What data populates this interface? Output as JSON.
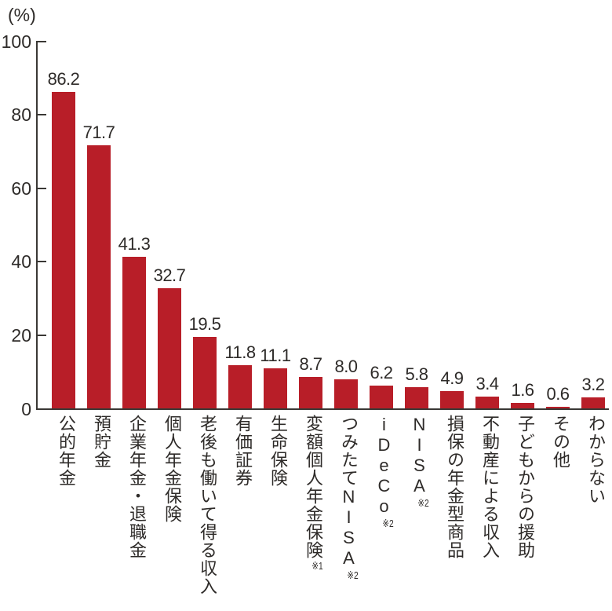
{
  "chart_data": {
    "type": "bar",
    "title": "",
    "xlabel": "",
    "ylabel": "",
    "y_unit_label": "(%)",
    "ylim": [
      0,
      100
    ],
    "yticks": [
      0,
      20,
      40,
      60,
      80,
      100
    ],
    "grid": false,
    "legend": "none",
    "bar_color": "#b81e28",
    "axis_color": "#3a3835",
    "text_color": "#2e2b29",
    "categories": [
      "公的年金",
      "預貯金",
      "企業年金・退職金",
      "個人年金保険",
      "老後も働いて得る収入",
      "有価証券",
      "生命保険",
      "変額個人年金保険",
      "つみたてNISA",
      "iDeCo",
      "NISA",
      "損保の年金型商品",
      "不動産による収入",
      "子どもからの援助",
      "その他",
      "わからない"
    ],
    "category_notes": [
      "",
      "",
      "",
      "",
      "",
      "",
      "",
      "※1",
      "※2",
      "※2",
      "※2",
      "",
      "",
      "",
      "",
      ""
    ],
    "values": [
      86.2,
      71.7,
      41.3,
      32.7,
      19.5,
      11.8,
      11.1,
      8.7,
      8.0,
      6.2,
      5.8,
      4.9,
      3.4,
      1.6,
      0.6,
      3.2
    ],
    "value_labels": [
      "86.2",
      "71.7",
      "41.3",
      "32.7",
      "19.5",
      "11.8",
      "11.1",
      "8.7",
      "8.0",
      "6.2",
      "5.8",
      "4.9",
      "3.4",
      "1.6",
      "0.6",
      "3.2"
    ]
  }
}
